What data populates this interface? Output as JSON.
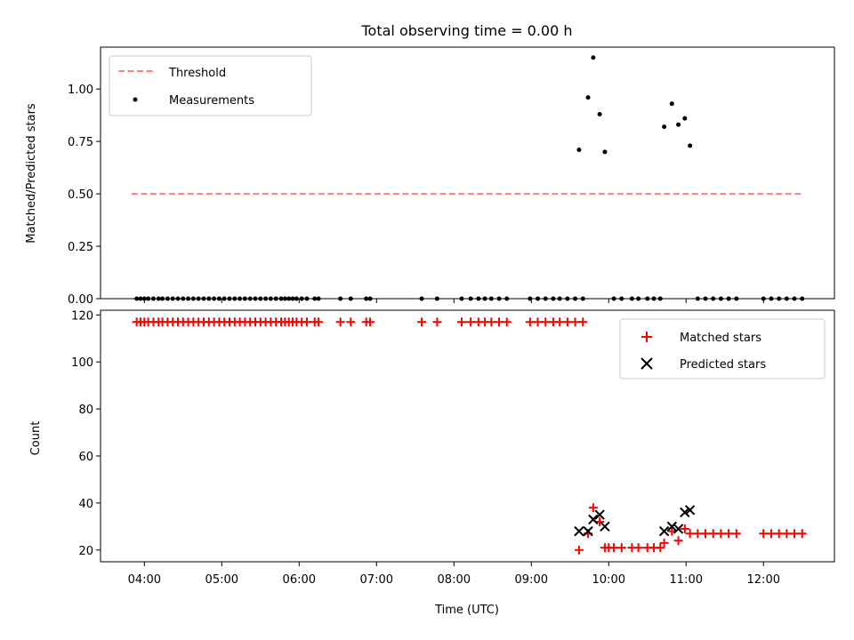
{
  "chart_data": [
    {
      "type": "scatter",
      "title": "Total observing time = 0.00 h",
      "xlabel": "",
      "ylabel": "Matched/Predicted stars",
      "ylim": [
        0,
        1.2
      ],
      "yticks": [
        "0.00",
        "0.25",
        "0.50",
        "0.75",
        "1.00"
      ],
      "legend_position": "top-left",
      "threshold": {
        "name": "Threshold",
        "value": 0.5,
        "x_range": [
          "03:50",
          "12:30"
        ],
        "color": "#ff7f7f",
        "style": "dashed"
      },
      "series": [
        {
          "name": "Measurements",
          "color": "#000000",
          "points": [
            [
              "03:54",
              0
            ],
            [
              "03:57",
              0
            ],
            [
              "04:00",
              0
            ],
            [
              "04:03",
              0
            ],
            [
              "04:07",
              0
            ],
            [
              "04:11",
              0
            ],
            [
              "04:14",
              0
            ],
            [
              "04:18",
              0
            ],
            [
              "04:22",
              0
            ],
            [
              "04:26",
              0
            ],
            [
              "04:30",
              0
            ],
            [
              "04:34",
              0
            ],
            [
              "04:38",
              0
            ],
            [
              "04:42",
              0
            ],
            [
              "04:46",
              0
            ],
            [
              "04:50",
              0
            ],
            [
              "04:54",
              0
            ],
            [
              "04:58",
              0
            ],
            [
              "05:02",
              0
            ],
            [
              "05:06",
              0
            ],
            [
              "05:10",
              0
            ],
            [
              "05:14",
              0
            ],
            [
              "05:18",
              0
            ],
            [
              "05:22",
              0
            ],
            [
              "05:26",
              0
            ],
            [
              "05:30",
              0
            ],
            [
              "05:34",
              0
            ],
            [
              "05:38",
              0
            ],
            [
              "05:42",
              0
            ],
            [
              "05:46",
              0
            ],
            [
              "05:49",
              0
            ],
            [
              "05:52",
              0
            ],
            [
              "05:55",
              0
            ],
            [
              "05:58",
              0
            ],
            [
              "06:02",
              0
            ],
            [
              "06:06",
              0
            ],
            [
              "06:12",
              0
            ],
            [
              "06:15",
              0
            ],
            [
              "06:32",
              0
            ],
            [
              "06:40",
              0
            ],
            [
              "06:52",
              0
            ],
            [
              "06:55",
              0
            ],
            [
              "07:35",
              0
            ],
            [
              "07:47",
              0
            ],
            [
              "08:06",
              0
            ],
            [
              "08:13",
              0
            ],
            [
              "08:19",
              0
            ],
            [
              "08:24",
              0
            ],
            [
              "08:29",
              0
            ],
            [
              "08:35",
              0
            ],
            [
              "08:41",
              0
            ],
            [
              "08:59",
              0
            ],
            [
              "09:05",
              0
            ],
            [
              "09:11",
              0
            ],
            [
              "09:17",
              0
            ],
            [
              "09:22",
              0
            ],
            [
              "09:28",
              0
            ],
            [
              "09:34",
              0
            ],
            [
              "09:40",
              0
            ],
            [
              "09:37",
              0.71
            ],
            [
              "09:44",
              0.96
            ],
            [
              "09:48",
              1.15
            ],
            [
              "09:53",
              0.88
            ],
            [
              "09:57",
              0.7
            ],
            [
              "10:04",
              0
            ],
            [
              "10:10",
              0
            ],
            [
              "10:18",
              0
            ],
            [
              "10:23",
              0
            ],
            [
              "10:30",
              0
            ],
            [
              "10:35",
              0
            ],
            [
              "10:40",
              0
            ],
            [
              "10:43",
              0.82
            ],
            [
              "10:49",
              0.93
            ],
            [
              "10:54",
              0.83
            ],
            [
              "10:59",
              0.86
            ],
            [
              "11:03",
              0.73
            ],
            [
              "11:09",
              0
            ],
            [
              "11:15",
              0
            ],
            [
              "11:21",
              0
            ],
            [
              "11:27",
              0
            ],
            [
              "11:33",
              0
            ],
            [
              "11:39",
              0
            ],
            [
              "12:00",
              0
            ],
            [
              "12:06",
              0
            ],
            [
              "12:12",
              0
            ],
            [
              "12:18",
              0
            ],
            [
              "12:24",
              0
            ],
            [
              "12:30",
              0
            ]
          ]
        }
      ]
    },
    {
      "type": "scatter",
      "title": "",
      "xlabel": "Time (UTC)",
      "ylabel": "Count",
      "ylim": [
        15,
        122
      ],
      "yticks": [
        "20",
        "40",
        "60",
        "80",
        "100",
        "120"
      ],
      "xlim": [
        "03:26",
        "12:55"
      ],
      "xticks": [
        "04:00",
        "05:00",
        "06:00",
        "07:00",
        "08:00",
        "09:00",
        "10:00",
        "11:00",
        "12:00"
      ],
      "legend_position": "top-right",
      "series": [
        {
          "name": "Matched stars",
          "marker": "+",
          "color": "#ff0000",
          "points": [
            [
              "03:54",
              117
            ],
            [
              "03:57",
              117
            ],
            [
              "04:00",
              117
            ],
            [
              "04:03",
              117
            ],
            [
              "04:07",
              117
            ],
            [
              "04:11",
              117
            ],
            [
              "04:14",
              117
            ],
            [
              "04:18",
              117
            ],
            [
              "04:22",
              117
            ],
            [
              "04:26",
              117
            ],
            [
              "04:30",
              117
            ],
            [
              "04:34",
              117
            ],
            [
              "04:38",
              117
            ],
            [
              "04:42",
              117
            ],
            [
              "04:46",
              117
            ],
            [
              "04:50",
              117
            ],
            [
              "04:54",
              117
            ],
            [
              "04:58",
              117
            ],
            [
              "05:02",
              117
            ],
            [
              "05:06",
              117
            ],
            [
              "05:10",
              117
            ],
            [
              "05:14",
              117
            ],
            [
              "05:18",
              117
            ],
            [
              "05:22",
              117
            ],
            [
              "05:26",
              117
            ],
            [
              "05:30",
              117
            ],
            [
              "05:34",
              117
            ],
            [
              "05:38",
              117
            ],
            [
              "05:42",
              117
            ],
            [
              "05:46",
              117
            ],
            [
              "05:49",
              117
            ],
            [
              "05:52",
              117
            ],
            [
              "05:55",
              117
            ],
            [
              "05:58",
              117
            ],
            [
              "06:02",
              117
            ],
            [
              "06:06",
              117
            ],
            [
              "06:12",
              117
            ],
            [
              "06:15",
              117
            ],
            [
              "06:32",
              117
            ],
            [
              "06:40",
              117
            ],
            [
              "06:52",
              117
            ],
            [
              "06:55",
              117
            ],
            [
              "07:35",
              117
            ],
            [
              "07:47",
              117
            ],
            [
              "08:06",
              117
            ],
            [
              "08:13",
              117
            ],
            [
              "08:19",
              117
            ],
            [
              "08:24",
              117
            ],
            [
              "08:29",
              117
            ],
            [
              "08:35",
              117
            ],
            [
              "08:41",
              117
            ],
            [
              "08:59",
              117
            ],
            [
              "09:05",
              117
            ],
            [
              "09:11",
              117
            ],
            [
              "09:17",
              117
            ],
            [
              "09:22",
              117
            ],
            [
              "09:28",
              117
            ],
            [
              "09:34",
              117
            ],
            [
              "09:40",
              117
            ],
            [
              "09:37",
              20
            ],
            [
              "09:44",
              27
            ],
            [
              "09:48",
              38
            ],
            [
              "09:53",
              32
            ],
            [
              "09:57",
              21
            ],
            [
              "10:00",
              21
            ],
            [
              "10:04",
              21
            ],
            [
              "10:10",
              21
            ],
            [
              "10:18",
              21
            ],
            [
              "10:23",
              21
            ],
            [
              "10:30",
              21
            ],
            [
              "10:35",
              21
            ],
            [
              "10:40",
              21
            ],
            [
              "10:43",
              23
            ],
            [
              "10:49",
              28
            ],
            [
              "10:54",
              24
            ],
            [
              "10:59",
              29
            ],
            [
              "11:03",
              27
            ],
            [
              "11:09",
              27
            ],
            [
              "11:15",
              27
            ],
            [
              "11:21",
              27
            ],
            [
              "11:27",
              27
            ],
            [
              "11:33",
              27
            ],
            [
              "11:39",
              27
            ],
            [
              "12:00",
              27
            ],
            [
              "12:06",
              27
            ],
            [
              "12:12",
              27
            ],
            [
              "12:18",
              27
            ],
            [
              "12:24",
              27
            ],
            [
              "12:30",
              27
            ]
          ]
        },
        {
          "name": "Predicted stars",
          "marker": "x",
          "color": "#000000",
          "points": [
            [
              "09:37",
              28
            ],
            [
              "09:44",
              28
            ],
            [
              "09:48",
              33
            ],
            [
              "09:53",
              35
            ],
            [
              "09:57",
              30
            ],
            [
              "10:43",
              28
            ],
            [
              "10:49",
              30
            ],
            [
              "10:54",
              29
            ],
            [
              "10:59",
              36
            ],
            [
              "11:03",
              37
            ]
          ]
        }
      ]
    }
  ]
}
